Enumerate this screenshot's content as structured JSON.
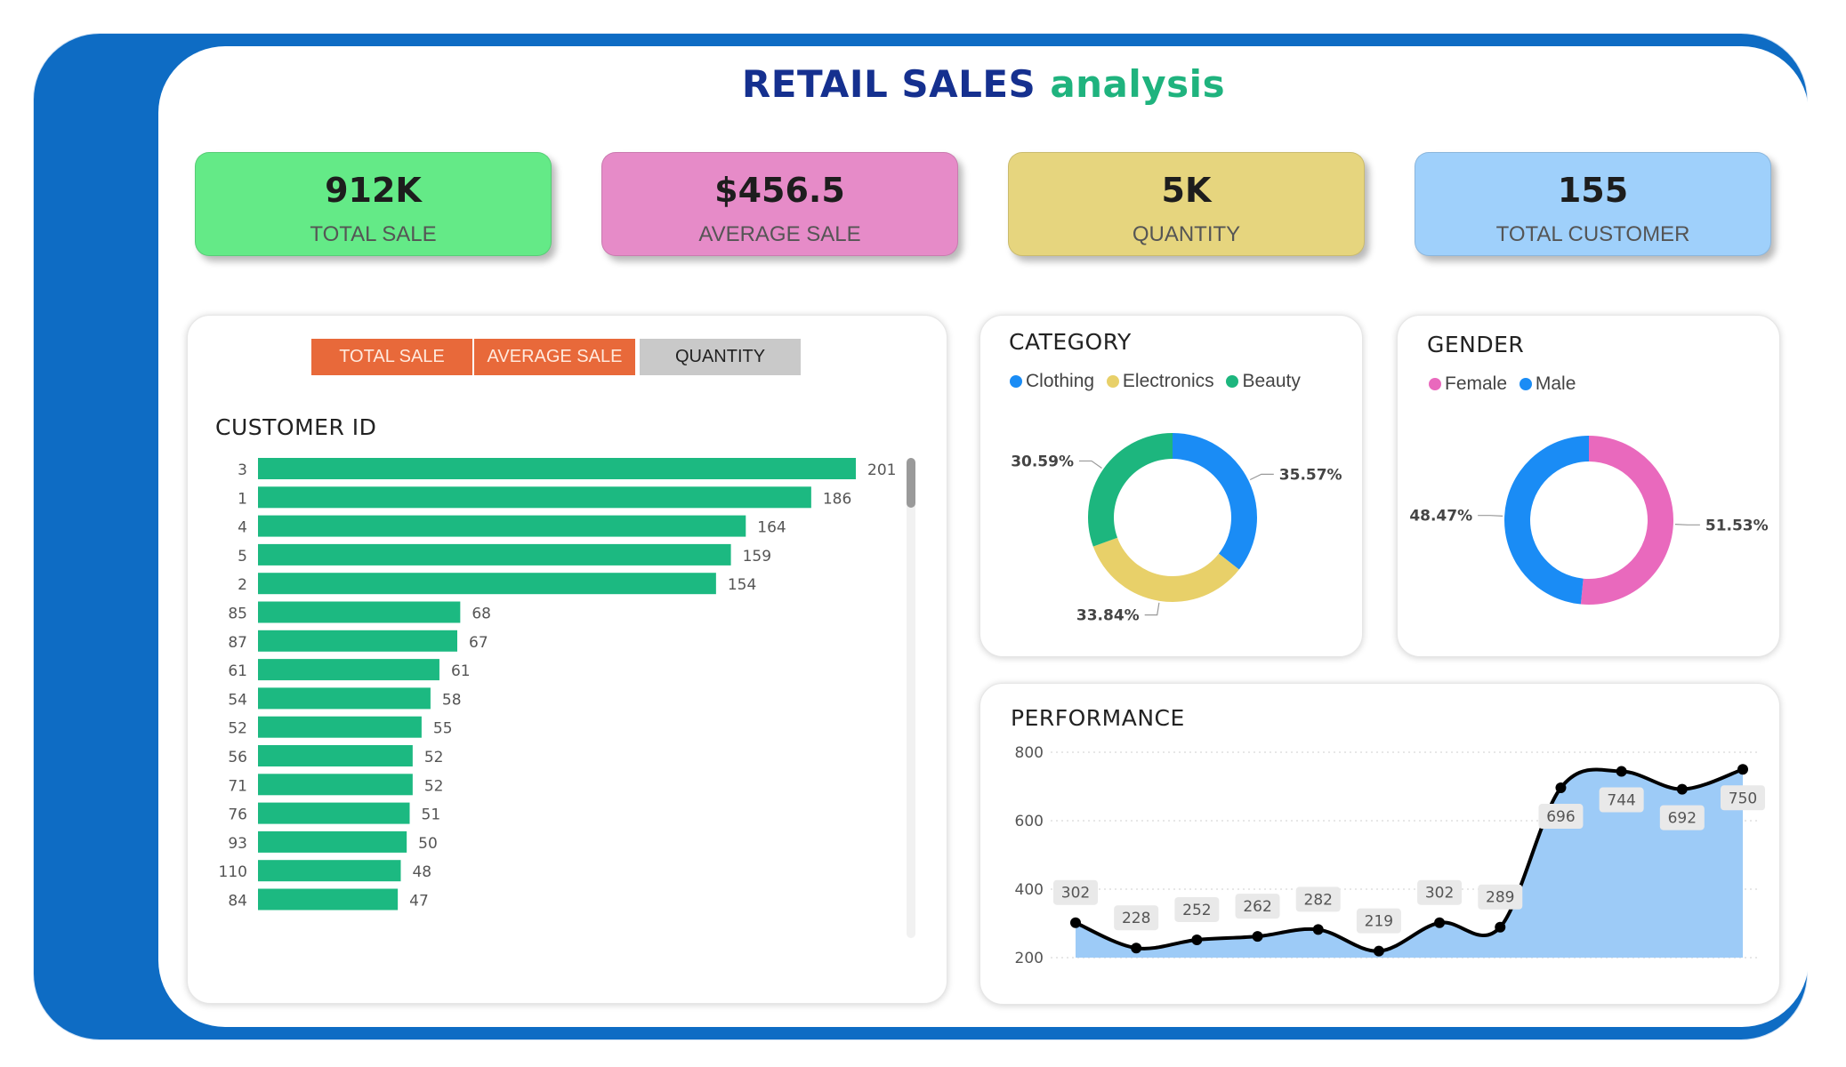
{
  "header": {
    "title_main": "RETAIL SALES",
    "title_accent": "analysis"
  },
  "kpis": [
    {
      "value": "912K",
      "label": "TOTAL SALE",
      "color": "#64ea87"
    },
    {
      "value": "$456.5",
      "label": "AVERAGE SALE",
      "color": "#e68bc8"
    },
    {
      "value": "5K",
      "label": "QUANTITY",
      "color": "#e6d57e"
    },
    {
      "value": "155",
      "label": "TOTAL CUSTOMER",
      "color": "#9fd0fb"
    }
  ],
  "toggle": {
    "total_sale": "TOTAL SALE",
    "average_sale": "AVERAGE SALE",
    "quantity": "QUANTITY"
  },
  "chart_data": [
    {
      "type": "bar",
      "orientation": "horizontal",
      "title": "CUSTOMER ID",
      "categories": [
        "3",
        "1",
        "4",
        "5",
        "2",
        "85",
        "87",
        "61",
        "54",
        "52",
        "56",
        "71",
        "76",
        "93",
        "110",
        "84"
      ],
      "values": [
        201,
        186,
        164,
        159,
        154,
        68,
        67,
        61,
        58,
        55,
        52,
        52,
        51,
        50,
        48,
        47
      ],
      "color": "#1cb981",
      "data_labels": true
    },
    {
      "type": "pie",
      "variant": "donut",
      "title": "CATEGORY",
      "legend_position": "top-left",
      "labels": [
        "Clothing",
        "Electronics",
        "Beauty"
      ],
      "values": [
        35.57,
        33.84,
        30.59
      ],
      "value_labels": [
        "35.57%",
        "33.84%",
        "30.59%"
      ],
      "colors": [
        "#1a8cf5",
        "#e8d069",
        "#1db67e"
      ]
    },
    {
      "type": "pie",
      "variant": "donut",
      "title": "GENDER",
      "legend_position": "top-left",
      "labels": [
        "Female",
        "Male"
      ],
      "values": [
        51.53,
        48.47
      ],
      "value_labels": [
        "51.53%",
        "48.47%"
      ],
      "colors": [
        "#e969bd",
        "#1a8cf5"
      ]
    },
    {
      "type": "area",
      "title": "PERFORMANCE",
      "y_ticks": [
        200,
        400,
        600,
        800
      ],
      "ylim": [
        200,
        800
      ],
      "values": [
        302,
        228,
        252,
        262,
        282,
        219,
        302,
        289,
        696,
        744,
        692,
        750
      ],
      "grid": true,
      "line_color": "#000000",
      "fill_color": "#9dcbf7"
    }
  ]
}
